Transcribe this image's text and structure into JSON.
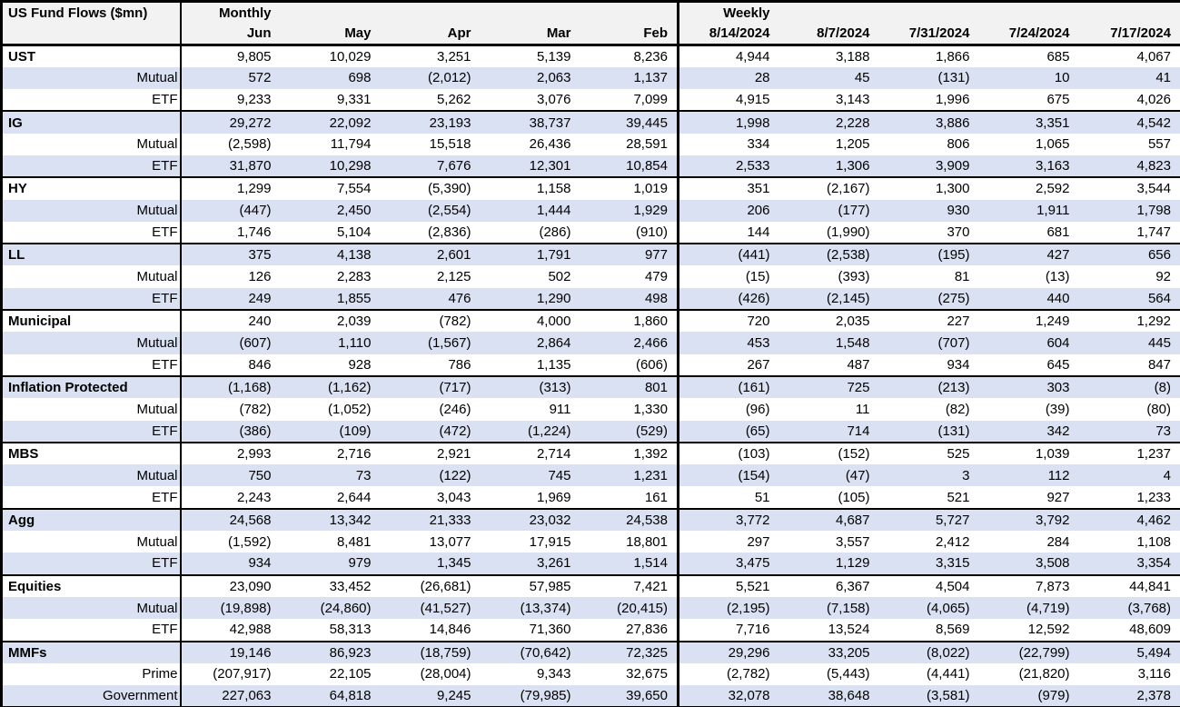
{
  "colors": {
    "stripe": "#D9E1F2",
    "header_bg": "#F2F2F2",
    "border": "#000000",
    "text": "#000000"
  },
  "chart_data": {
    "type": "table",
    "title": "US Fund Flows ($mn)",
    "units": "$mn",
    "negative_format": "parentheses",
    "section_headers": {
      "monthly": "Monthly",
      "weekly": "Weekly"
    },
    "monthly_columns": [
      "Jun",
      "May",
      "Apr",
      "Mar",
      "Feb"
    ],
    "weekly_columns": [
      "8/14/2024",
      "8/7/2024",
      "7/31/2024",
      "7/24/2024",
      "7/17/2024"
    ],
    "rows": [
      {
        "label": "UST",
        "kind": "group",
        "values": [
          "9,805",
          "10,029",
          "3,251",
          "5,139",
          "8,236",
          "4,944",
          "3,188",
          "1,866",
          "685",
          "4,067"
        ]
      },
      {
        "label": "Mutual",
        "kind": "sub",
        "values": [
          "572",
          "698",
          "(2,012)",
          "2,063",
          "1,137",
          "28",
          "45",
          "(131)",
          "10",
          "41"
        ]
      },
      {
        "label": "ETF",
        "kind": "sub",
        "values": [
          "9,233",
          "9,331",
          "5,262",
          "3,076",
          "7,099",
          "4,915",
          "3,143",
          "1,996",
          "675",
          "4,026"
        ]
      },
      {
        "label": "IG",
        "kind": "group",
        "values": [
          "29,272",
          "22,092",
          "23,193",
          "38,737",
          "39,445",
          "1,998",
          "2,228",
          "3,886",
          "3,351",
          "4,542"
        ]
      },
      {
        "label": "Mutual",
        "kind": "sub",
        "values": [
          "(2,598)",
          "11,794",
          "15,518",
          "26,436",
          "28,591",
          "334",
          "1,205",
          "806",
          "1,065",
          "557"
        ]
      },
      {
        "label": "ETF",
        "kind": "sub",
        "values": [
          "31,870",
          "10,298",
          "7,676",
          "12,301",
          "10,854",
          "2,533",
          "1,306",
          "3,909",
          "3,163",
          "4,823"
        ]
      },
      {
        "label": "HY",
        "kind": "group",
        "values": [
          "1,299",
          "7,554",
          "(5,390)",
          "1,158",
          "1,019",
          "351",
          "(2,167)",
          "1,300",
          "2,592",
          "3,544"
        ]
      },
      {
        "label": "Mutual",
        "kind": "sub",
        "values": [
          "(447)",
          "2,450",
          "(2,554)",
          "1,444",
          "1,929",
          "206",
          "(177)",
          "930",
          "1,911",
          "1,798"
        ]
      },
      {
        "label": "ETF",
        "kind": "sub",
        "values": [
          "1,746",
          "5,104",
          "(2,836)",
          "(286)",
          "(910)",
          "144",
          "(1,990)",
          "370",
          "681",
          "1,747"
        ]
      },
      {
        "label": "LL",
        "kind": "group",
        "values": [
          "375",
          "4,138",
          "2,601",
          "1,791",
          "977",
          "(441)",
          "(2,538)",
          "(195)",
          "427",
          "656"
        ]
      },
      {
        "label": "Mutual",
        "kind": "sub",
        "values": [
          "126",
          "2,283",
          "2,125",
          "502",
          "479",
          "(15)",
          "(393)",
          "81",
          "(13)",
          "92"
        ]
      },
      {
        "label": "ETF",
        "kind": "sub",
        "values": [
          "249",
          "1,855",
          "476",
          "1,290",
          "498",
          "(426)",
          "(2,145)",
          "(275)",
          "440",
          "564"
        ]
      },
      {
        "label": "Municipal",
        "kind": "group",
        "values": [
          "240",
          "2,039",
          "(782)",
          "4,000",
          "1,860",
          "720",
          "2,035",
          "227",
          "1,249",
          "1,292"
        ]
      },
      {
        "label": "Mutual",
        "kind": "sub",
        "values": [
          "(607)",
          "1,110",
          "(1,567)",
          "2,864",
          "2,466",
          "453",
          "1,548",
          "(707)",
          "604",
          "445"
        ]
      },
      {
        "label": "ETF",
        "kind": "sub",
        "values": [
          "846",
          "928",
          "786",
          "1,135",
          "(606)",
          "267",
          "487",
          "934",
          "645",
          "847"
        ]
      },
      {
        "label": "Inflation Protected",
        "kind": "group",
        "values": [
          "(1,168)",
          "(1,162)",
          "(717)",
          "(313)",
          "801",
          "(161)",
          "725",
          "(213)",
          "303",
          "(8)"
        ]
      },
      {
        "label": "Mutual",
        "kind": "sub",
        "values": [
          "(782)",
          "(1,052)",
          "(246)",
          "911",
          "1,330",
          "(96)",
          "11",
          "(82)",
          "(39)",
          "(80)"
        ]
      },
      {
        "label": "ETF",
        "kind": "sub",
        "values": [
          "(386)",
          "(109)",
          "(472)",
          "(1,224)",
          "(529)",
          "(65)",
          "714",
          "(131)",
          "342",
          "73"
        ]
      },
      {
        "label": "MBS",
        "kind": "group",
        "values": [
          "2,993",
          "2,716",
          "2,921",
          "2,714",
          "1,392",
          "(103)",
          "(152)",
          "525",
          "1,039",
          "1,237"
        ]
      },
      {
        "label": "Mutual",
        "kind": "sub",
        "values": [
          "750",
          "73",
          "(122)",
          "745",
          "1,231",
          "(154)",
          "(47)",
          "3",
          "112",
          "4"
        ]
      },
      {
        "label": "ETF",
        "kind": "sub",
        "values": [
          "2,243",
          "2,644",
          "3,043",
          "1,969",
          "161",
          "51",
          "(105)",
          "521",
          "927",
          "1,233"
        ]
      },
      {
        "label": "Agg",
        "kind": "group",
        "values": [
          "24,568",
          "13,342",
          "21,333",
          "23,032",
          "24,538",
          "3,772",
          "4,687",
          "5,727",
          "3,792",
          "4,462"
        ]
      },
      {
        "label": "Mutual",
        "kind": "sub",
        "values": [
          "(1,592)",
          "8,481",
          "13,077",
          "17,915",
          "18,801",
          "297",
          "3,557",
          "2,412",
          "284",
          "1,108"
        ]
      },
      {
        "label": "ETF",
        "kind": "sub",
        "values": [
          "934",
          "979",
          "1,345",
          "3,261",
          "1,514",
          "3,475",
          "1,129",
          "3,315",
          "3,508",
          "3,354"
        ]
      },
      {
        "label": "Equities",
        "kind": "group",
        "values": [
          "23,090",
          "33,452",
          "(26,681)",
          "57,985",
          "7,421",
          "5,521",
          "6,367",
          "4,504",
          "7,873",
          "44,841"
        ]
      },
      {
        "label": "Mutual",
        "kind": "sub",
        "values": [
          "(19,898)",
          "(24,860)",
          "(41,527)",
          "(13,374)",
          "(20,415)",
          "(2,195)",
          "(7,158)",
          "(4,065)",
          "(4,719)",
          "(3,768)"
        ]
      },
      {
        "label": "ETF",
        "kind": "sub",
        "values": [
          "42,988",
          "58,313",
          "14,846",
          "71,360",
          "27,836",
          "7,716",
          "13,524",
          "8,569",
          "12,592",
          "48,609"
        ]
      },
      {
        "label": "MMFs",
        "kind": "group",
        "values": [
          "19,146",
          "86,923",
          "(18,759)",
          "(70,642)",
          "72,325",
          "29,296",
          "33,205",
          "(8,022)",
          "(22,799)",
          "5,494"
        ]
      },
      {
        "label": "Prime",
        "kind": "sub",
        "values": [
          "(207,917)",
          "22,105",
          "(28,004)",
          "9,343",
          "32,675",
          "(2,782)",
          "(5,443)",
          "(4,441)",
          "(21,820)",
          "3,116"
        ]
      },
      {
        "label": "Government",
        "kind": "sub",
        "values": [
          "227,063",
          "64,818",
          "9,245",
          "(79,985)",
          "39,650",
          "32,078",
          "38,648",
          "(3,581)",
          "(979)",
          "2,378"
        ]
      }
    ]
  }
}
